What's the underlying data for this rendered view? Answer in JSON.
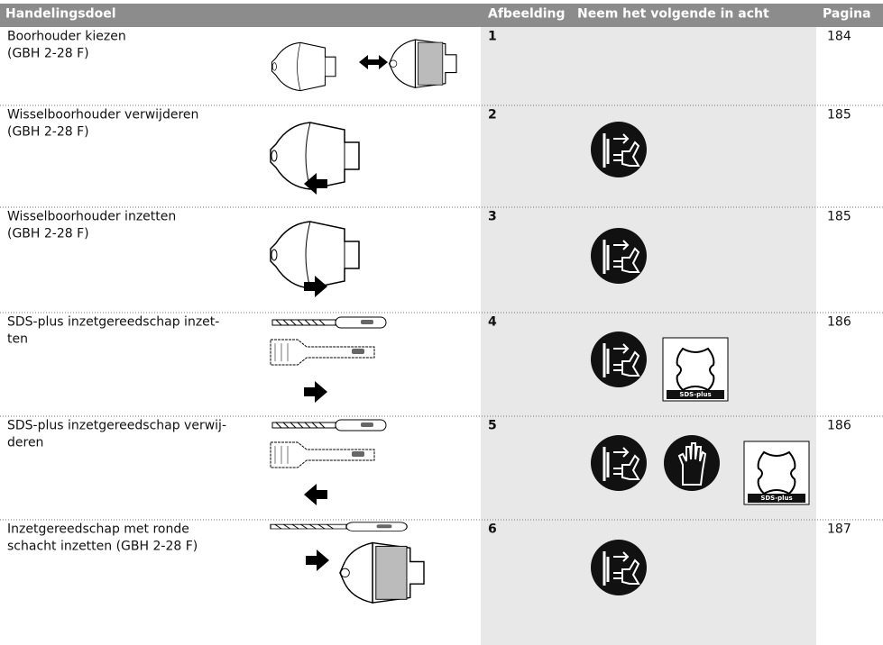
{
  "header": [
    "Handelingsdoel",
    "Afbeelding",
    "Neem het volgende in acht",
    "Pagina"
  ],
  "rows": [
    {
      "goal": [
        "Boorhouder kiezen",
        "(GBH 2-28 F)"
      ],
      "figure": "1",
      "page": "184"
    },
    {
      "goal": [
        "Wisselboorhouder verwijderen",
        "(GBH 2-28 F)"
      ],
      "figure": "2",
      "page": "185"
    },
    {
      "goal": [
        "Wisselboorhouder inzetten",
        "(GBH 2-28 F)"
      ],
      "figure": "3",
      "page": "185"
    },
    {
      "goal": [
        "SDS-plus inzetgereedschap inzet-",
        "ten"
      ],
      "figure": "4",
      "page": "186",
      "sds_label": "SDS-plus"
    },
    {
      "goal": [
        "SDS-plus inzetgereedschap verwij-",
        "deren"
      ],
      "figure": "5",
      "page": "186",
      "sds_label": "SDS-plus"
    },
    {
      "goal": [
        "Inzetgereedschap met ronde",
        "schacht inzetten (GBH 2-28 F)"
      ],
      "figure": "6",
      "page": "187"
    }
  ]
}
